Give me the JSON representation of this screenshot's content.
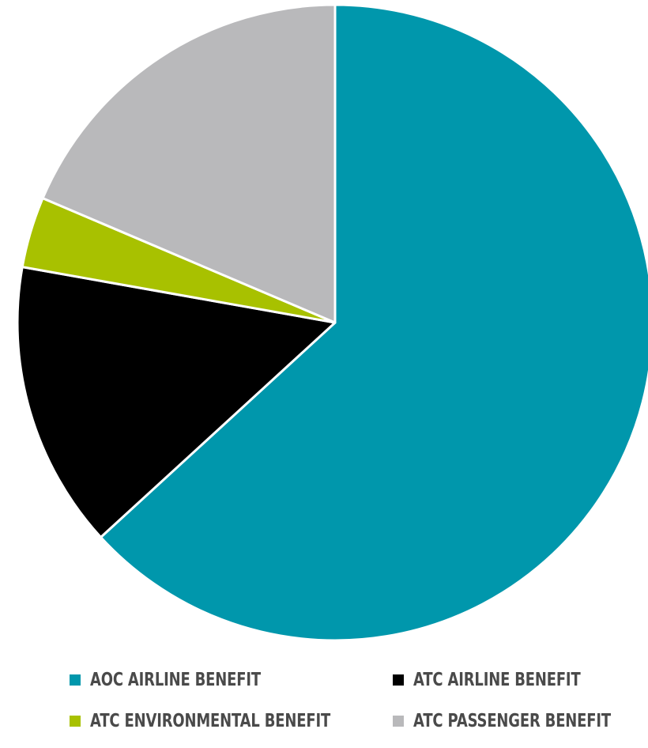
{
  "chart_data": {
    "type": "pie",
    "slices": [
      {
        "label": "AOC AIRLINE BENEFIT",
        "value": 63.2,
        "color": "#0097ac"
      },
      {
        "label": "ATC AIRLINE BENEFIT",
        "value": 14.6,
        "color": "#000000"
      },
      {
        "label": "ATC ENVIRONMENTAL BENEFIT",
        "value": 3.6,
        "color": "#a8c100"
      },
      {
        "label": "ATC PASSENGER BENEFIT",
        "value": 18.6,
        "color": "#b9b9bb"
      }
    ],
    "start_angle_deg": 0,
    "direction": "clockwise",
    "legend_position": "bottom",
    "slice_border_color": "#ffffff"
  },
  "legend": {
    "items": [
      {
        "label": "AOC AIRLINE BENEFIT",
        "color": "#0097ac"
      },
      {
        "label": "ATC AIRLINE BENEFIT",
        "color": "#000000"
      },
      {
        "label": "ATC ENVIRONMENTAL BENEFIT",
        "color": "#a8c100"
      },
      {
        "label": "ATC PASSENGER BENEFIT",
        "color": "#b9b9bb"
      }
    ]
  }
}
